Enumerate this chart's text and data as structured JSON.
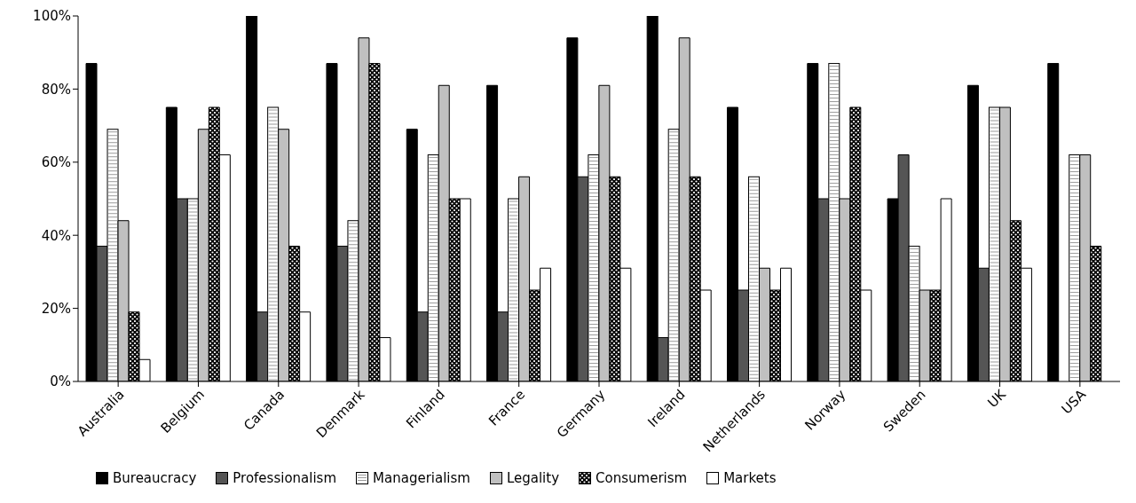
{
  "chart_data": {
    "type": "bar",
    "categories": [
      "Australia",
      "Belgium",
      "Canada",
      "Denmark",
      "Finland",
      "France",
      "Germany",
      "Ireland",
      "Netherlands",
      "Norway",
      "Sweden",
      "UK",
      "USA"
    ],
    "series": [
      {
        "name": "Bureaucracy",
        "color": "#000000",
        "values": [
          87,
          75,
          100,
          87,
          69,
          81,
          94,
          100,
          75,
          87,
          50,
          81,
          87
        ]
      },
      {
        "name": "Professionalism",
        "color": "#555555",
        "values": [
          37,
          50,
          19,
          37,
          19,
          19,
          56,
          12,
          25,
          50,
          62,
          31,
          0
        ]
      },
      {
        "name": "Managerialism",
        "color": "#ffffff",
        "values": [
          69,
          50,
          75,
          44,
          62,
          50,
          62,
          69,
          56,
          87,
          37,
          75,
          62
        ]
      },
      {
        "name": "Legality",
        "color": "#c0c0c0",
        "values": [
          44,
          69,
          69,
          94,
          81,
          56,
          81,
          94,
          31,
          50,
          25,
          75,
          62
        ]
      },
      {
        "name": "Consumerism",
        "color": "#000000",
        "values": [
          19,
          75,
          37,
          87,
          50,
          25,
          56,
          56,
          25,
          75,
          25,
          44,
          37
        ]
      },
      {
        "name": "Markets",
        "color": "#ffffff",
        "values": [
          6,
          62,
          19,
          12,
          50,
          31,
          31,
          25,
          31,
          25,
          50,
          31,
          0
        ]
      }
    ],
    "ylim": [
      0,
      100
    ],
    "yticks": [
      {
        "value": 0,
        "label": "0%"
      },
      {
        "value": 20,
        "label": "20%"
      },
      {
        "value": 40,
        "label": "40%"
      },
      {
        "value": 60,
        "label": "60%"
      },
      {
        "value": 80,
        "label": "80%"
      },
      {
        "value": 100,
        "label": "100%"
      }
    ],
    "grid": false,
    "legend": "bottom"
  }
}
